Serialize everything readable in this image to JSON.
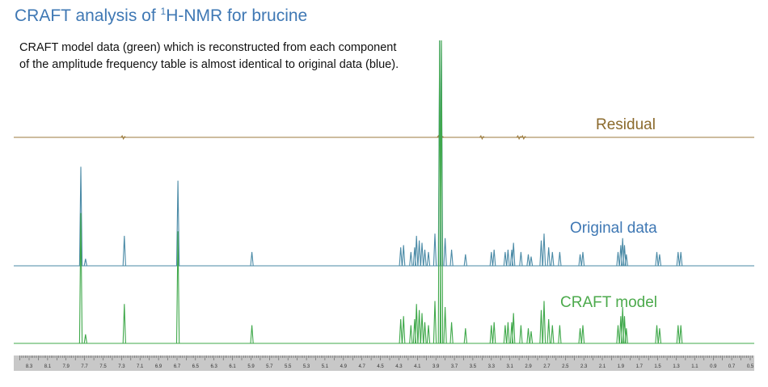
{
  "title": {
    "prefix": "CRAFT analysis of ",
    "superscript": "1",
    "suffix": "H-NMR for brucine"
  },
  "description": "CRAFT model data (green) which is reconstructed from each component of the amplitude frequency table is almost identical to original data (blue).",
  "colors": {
    "title": "#3f78b4",
    "residual": "#9b7a3c",
    "original": "#4a8aa6",
    "model": "#3fa84a",
    "label_residual": "#8b6a2c",
    "label_original": "#3f78b4",
    "label_model": "#4caa4c"
  },
  "chart_data": {
    "type": "line",
    "xlabel": "",
    "ylabel": "",
    "x_axis_reversed": true,
    "x_ticks": [
      "8.3",
      "8.1",
      "7.9",
      "7.7",
      "7.5",
      "7.3",
      "7.1",
      "6.9",
      "6.7",
      "6.5",
      "6.3",
      "6.1",
      "5.9",
      "5.7",
      "5.5",
      "5.3",
      "5.1",
      "4.9",
      "4.7",
      "4.5",
      "4.3",
      "4.1",
      "3.9",
      "3.7",
      "3.5",
      "3.3",
      "3.1",
      "2.9",
      "2.7",
      "2.5",
      "2.3",
      "2.1",
      "1.9",
      "1.7",
      "1.5",
      "1.3",
      "1.1",
      "0.9",
      "0.7",
      "0.5"
    ],
    "series": [
      {
        "name": "Residual"
      },
      {
        "name": "Original data"
      },
      {
        "name": "CRAFT model"
      }
    ],
    "peaks": [
      {
        "ppm": 7.74,
        "height": 0.43
      },
      {
        "ppm": 7.69,
        "height": 0.03
      },
      {
        "ppm": 7.27,
        "height": 0.13
      },
      {
        "ppm": 6.69,
        "height": 0.37
      },
      {
        "ppm": 5.89,
        "height": 0.06
      },
      {
        "ppm": 4.28,
        "height": 0.08
      },
      {
        "ppm": 4.25,
        "height": 0.09
      },
      {
        "ppm": 4.17,
        "height": 0.06
      },
      {
        "ppm": 4.13,
        "height": 0.08
      },
      {
        "ppm": 4.11,
        "height": 0.13
      },
      {
        "ppm": 4.08,
        "height": 0.11
      },
      {
        "ppm": 4.05,
        "height": 0.1
      },
      {
        "ppm": 4.02,
        "height": 0.07
      },
      {
        "ppm": 3.98,
        "height": 0.06
      },
      {
        "ppm": 3.91,
        "height": 0.14
      },
      {
        "ppm": 3.86,
        "height": 1.0
      },
      {
        "ppm": 3.84,
        "height": 1.0
      },
      {
        "ppm": 3.8,
        "height": 0.12
      },
      {
        "ppm": 3.73,
        "height": 0.07
      },
      {
        "ppm": 3.58,
        "height": 0.05
      },
      {
        "ppm": 3.3,
        "height": 0.06
      },
      {
        "ppm": 3.27,
        "height": 0.07
      },
      {
        "ppm": 3.15,
        "height": 0.06
      },
      {
        "ppm": 3.12,
        "height": 0.07
      },
      {
        "ppm": 3.08,
        "height": 0.07
      },
      {
        "ppm": 3.06,
        "height": 0.1
      },
      {
        "ppm": 2.98,
        "height": 0.06
      },
      {
        "ppm": 2.9,
        "height": 0.05
      },
      {
        "ppm": 2.87,
        "height": 0.04
      },
      {
        "ppm": 2.76,
        "height": 0.11
      },
      {
        "ppm": 2.73,
        "height": 0.14
      },
      {
        "ppm": 2.68,
        "height": 0.08
      },
      {
        "ppm": 2.64,
        "height": 0.06
      },
      {
        "ppm": 2.56,
        "height": 0.06
      },
      {
        "ppm": 2.34,
        "height": 0.05
      },
      {
        "ppm": 2.31,
        "height": 0.06
      },
      {
        "ppm": 1.93,
        "height": 0.06
      },
      {
        "ppm": 1.9,
        "height": 0.09
      },
      {
        "ppm": 1.88,
        "height": 0.12
      },
      {
        "ppm": 1.86,
        "height": 0.09
      },
      {
        "ppm": 1.84,
        "height": 0.05
      },
      {
        "ppm": 1.51,
        "height": 0.06
      },
      {
        "ppm": 1.48,
        "height": 0.05
      },
      {
        "ppm": 1.28,
        "height": 0.06
      },
      {
        "ppm": 1.25,
        "height": 0.06
      }
    ],
    "residual_bumps": [
      7.28,
      3.86,
      3.84,
      3.4,
      3.0,
      2.95
    ]
  },
  "labels": {
    "residual": "Residual",
    "original": "Original data",
    "model": "CRAFT model"
  }
}
